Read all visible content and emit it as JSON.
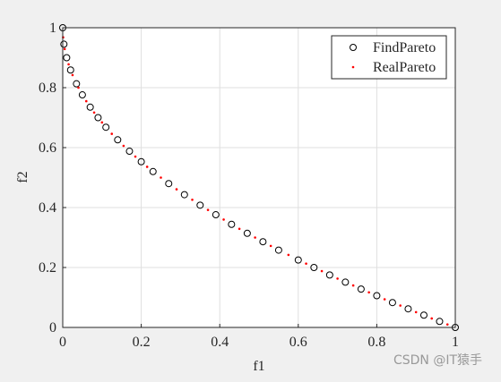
{
  "chart_data": {
    "type": "scatter",
    "xlabel": "f1",
    "ylabel": "f2",
    "xlim": [
      0,
      1
    ],
    "ylim": [
      0,
      1
    ],
    "xticks": [
      0,
      0.2,
      0.4,
      0.6,
      0.8,
      1
    ],
    "yticks": [
      0,
      0.2,
      0.4,
      0.6,
      0.8,
      1
    ],
    "grid": true,
    "legend_position": "upper-right",
    "series": [
      {
        "name": "FindPareto",
        "color": "#000000",
        "marker": "circle",
        "x": [
          0,
          0.003,
          0.01,
          0.02,
          0.035,
          0.05,
          0.07,
          0.09,
          0.11,
          0.14,
          0.17,
          0.2,
          0.23,
          0.27,
          0.31,
          0.35,
          0.39,
          0.43,
          0.47,
          0.51,
          0.55,
          0.6,
          0.64,
          0.68,
          0.72,
          0.76,
          0.8,
          0.84,
          0.88,
          0.92,
          0.96,
          1
        ],
        "values": [
          1,
          0.945,
          0.9,
          0.859,
          0.813,
          0.776,
          0.735,
          0.7,
          0.668,
          0.626,
          0.588,
          0.553,
          0.52,
          0.48,
          0.443,
          0.408,
          0.376,
          0.344,
          0.314,
          0.286,
          0.258,
          0.225,
          0.2,
          0.175,
          0.151,
          0.128,
          0.106,
          0.083,
          0.062,
          0.041,
          0.02,
          0
        ]
      },
      {
        "name": "RealPareto",
        "color": "#ff0000",
        "marker": "dot",
        "x": [
          0.001,
          0.005,
          0.015,
          0.025,
          0.04,
          0.06,
          0.08,
          0.1,
          0.125,
          0.155,
          0.185,
          0.215,
          0.25,
          0.29,
          0.33,
          0.37,
          0.41,
          0.45,
          0.49,
          0.53,
          0.575,
          0.62,
          0.66,
          0.7,
          0.74,
          0.78,
          0.82,
          0.86,
          0.9,
          0.94,
          0.98
        ],
        "values": [
          0.968,
          0.929,
          0.878,
          0.842,
          0.8,
          0.755,
          0.717,
          0.684,
          0.646,
          0.606,
          0.57,
          0.536,
          0.5,
          0.461,
          0.426,
          0.392,
          0.36,
          0.329,
          0.3,
          0.272,
          0.242,
          0.213,
          0.188,
          0.163,
          0.14,
          0.117,
          0.094,
          0.073,
          0.051,
          0.03,
          0.01
        ]
      }
    ],
    "watermark": "CSDN @IT猿手"
  }
}
